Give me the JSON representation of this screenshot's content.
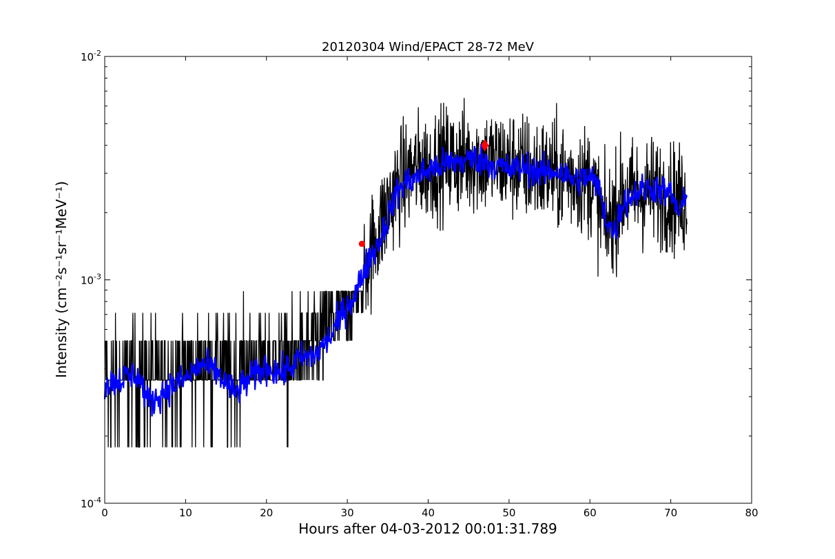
{
  "chart_data": {
    "type": "line",
    "title": "20120304 Wind/EPACT 28-72 MeV",
    "xlabel": "Hours after 04-03-2012 00:01:31.789",
    "ylabel": "Intensity (cm⁻²s⁻¹sr⁻¹MeV⁻¹)",
    "xlim": [
      0,
      80
    ],
    "ylim": [
      0.0001,
      0.01
    ],
    "yscale": "log",
    "grid": false,
    "x_ticks": [
      0,
      10,
      20,
      30,
      40,
      50,
      60,
      70,
      80
    ],
    "x_tick_labels": [
      "0",
      "10",
      "20",
      "30",
      "40",
      "50",
      "60",
      "70",
      "80"
    ],
    "y_ticks": [
      0.0001,
      0.001,
      0.01
    ],
    "y_tick_labels": [
      {
        "base": "10",
        "exp": "-4"
      },
      {
        "base": "10",
        "exp": "-3"
      },
      {
        "base": "10",
        "exp": "-2"
      }
    ],
    "series": [
      {
        "kind": "raw",
        "color": "#000000",
        "x_start": 0.1,
        "x_end": 72,
        "levels": [
          0.000178,
          0.000356,
          0.000534,
          0.000712,
          0.00089
        ],
        "envelope": {
          "x": [
            0,
            10,
            20,
            25,
            28,
            30,
            32,
            34,
            36,
            38,
            42,
            46,
            50,
            55,
            60,
            62,
            64,
            68,
            72
          ],
          "y_mid": [
            0.00034,
            0.00038,
            0.0004,
            0.00046,
            0.00062,
            0.0008,
            0.0011,
            0.0017,
            0.0026,
            0.0031,
            0.0034,
            0.0035,
            0.0033,
            0.003,
            0.0028,
            0.0017,
            0.0024,
            0.0025,
            0.0022
          ]
        }
      },
      {
        "kind": "smoothed",
        "color": "#0000ff",
        "x": [
          0,
          2,
          4,
          5.5,
          8,
          10,
          12,
          14,
          16,
          18,
          20,
          22,
          24,
          26,
          28,
          30,
          31,
          32,
          33,
          34,
          35,
          36,
          37,
          38,
          40,
          42,
          44,
          46,
          47,
          48,
          50,
          52,
          54,
          56,
          58,
          60,
          61,
          62,
          63,
          64,
          66,
          68,
          70,
          71,
          72
        ],
        "y": [
          0.00034,
          0.00036,
          0.00038,
          0.00028,
          0.00033,
          0.00036,
          0.00042,
          0.00038,
          0.00031,
          0.00036,
          0.00041,
          0.00038,
          0.00044,
          0.00046,
          0.00056,
          0.00078,
          0.00085,
          0.0011,
          0.0013,
          0.0015,
          0.0019,
          0.0024,
          0.0027,
          0.0028,
          0.0031,
          0.0033,
          0.0034,
          0.0035,
          0.0034,
          0.0033,
          0.0031,
          0.0032,
          0.003,
          0.0031,
          0.0028,
          0.0029,
          0.0026,
          0.0019,
          0.0016,
          0.0022,
          0.0025,
          0.0026,
          0.0024,
          0.002,
          0.0023
        ]
      }
    ],
    "markers": [
      {
        "x": 31.8,
        "y": 0.00145,
        "color": "#ff0000",
        "shape": "circle"
      },
      {
        "x": 47.0,
        "y": 0.004,
        "color": "#ff0000",
        "shape": "diamond"
      }
    ]
  }
}
